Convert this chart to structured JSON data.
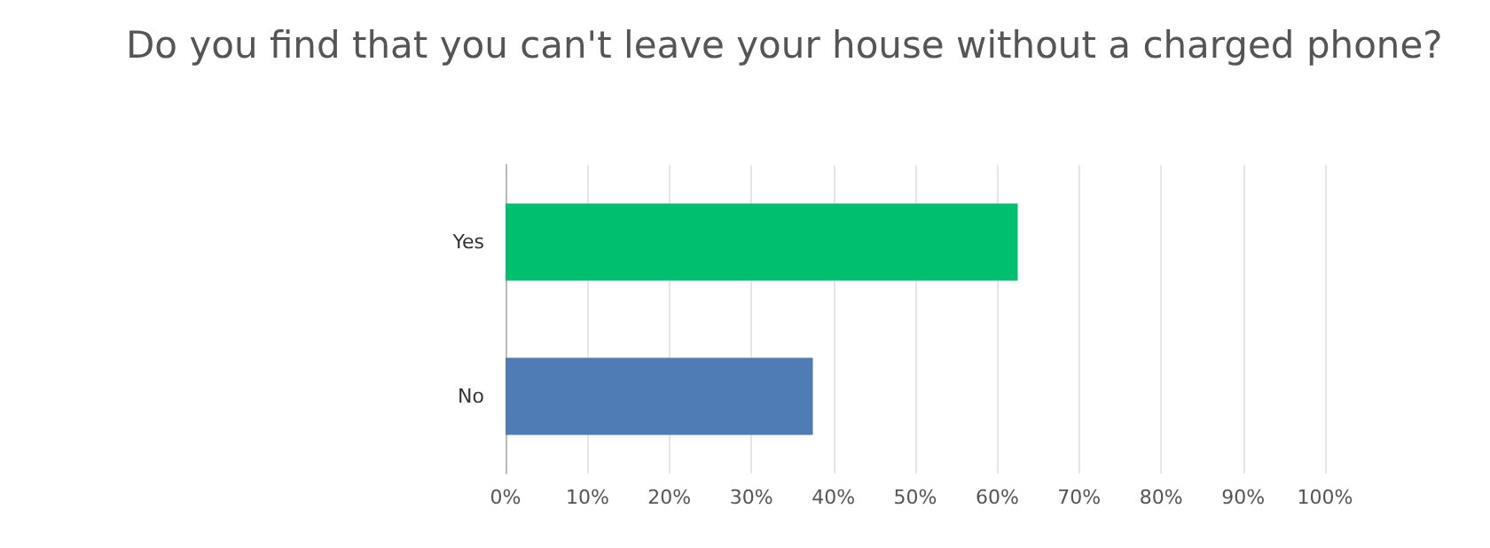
{
  "chart_data": {
    "type": "bar",
    "orientation": "horizontal",
    "title": "Do you find that you can't leave your house without a charged phone?",
    "categories": [
      "Yes",
      "No"
    ],
    "values": [
      62.5,
      37.5
    ],
    "colors": [
      "#00bf6f",
      "#507cb6"
    ],
    "xlim": [
      0,
      100
    ],
    "xticks": [
      {
        "value": 0,
        "label": "0%"
      },
      {
        "value": 10,
        "label": "10%"
      },
      {
        "value": 20,
        "label": "20%"
      },
      {
        "value": 30,
        "label": "30%"
      },
      {
        "value": 40,
        "label": "40%"
      },
      {
        "value": 50,
        "label": "50%"
      },
      {
        "value": 60,
        "label": "60%"
      },
      {
        "value": 70,
        "label": "70%"
      },
      {
        "value": 80,
        "label": "80%"
      },
      {
        "value": 90,
        "label": "90%"
      },
      {
        "value": 100,
        "label": "100%"
      }
    ],
    "grid": "x"
  }
}
